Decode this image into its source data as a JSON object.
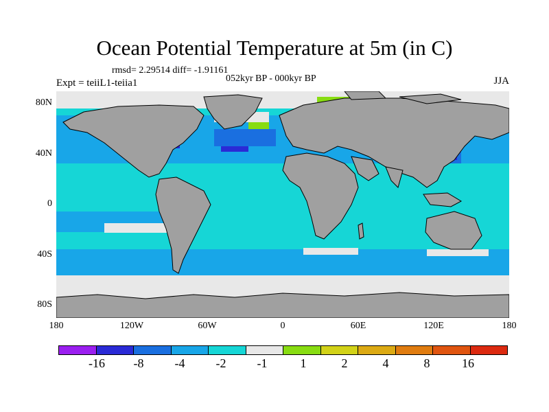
{
  "title": "Ocean Potential Temperature at 5m (in C)",
  "stats": "rmsd= 2.29514 diff= -1.91161",
  "experiment": "Expt = teiiL1-teiia1",
  "period": "052kyr BP - 000kyr BP",
  "season": "JJA",
  "lat_labels": [
    "80N",
    "40N",
    "0",
    "40S",
    "80S"
  ],
  "lon_labels": [
    "180",
    "120W",
    "60W",
    "0",
    "60E",
    "120E",
    "180"
  ],
  "colorbar": {
    "colors": [
      "#9b1ff0",
      "#2a2ad6",
      "#1a6fe0",
      "#18a6e8",
      "#16d6d6",
      "#e8e8e8",
      "#88dc12",
      "#d2d218",
      "#dcaa14",
      "#e07c10",
      "#e05510",
      "#dc2a10"
    ],
    "labels": [
      "-16",
      "-8",
      "-4",
      "-2",
      "-1",
      "1",
      "2",
      "4",
      "8",
      "16"
    ]
  },
  "map_colors": {
    "land": "#a0a0a0",
    "cold1": "#16d6d6",
    "cold2": "#18a6e8",
    "cold4": "#1a6fe0",
    "cold8": "#2a2ad6",
    "neutral": "#e8e8e8",
    "warm2": "#88dc12",
    "warm4": "#d2d218"
  }
}
